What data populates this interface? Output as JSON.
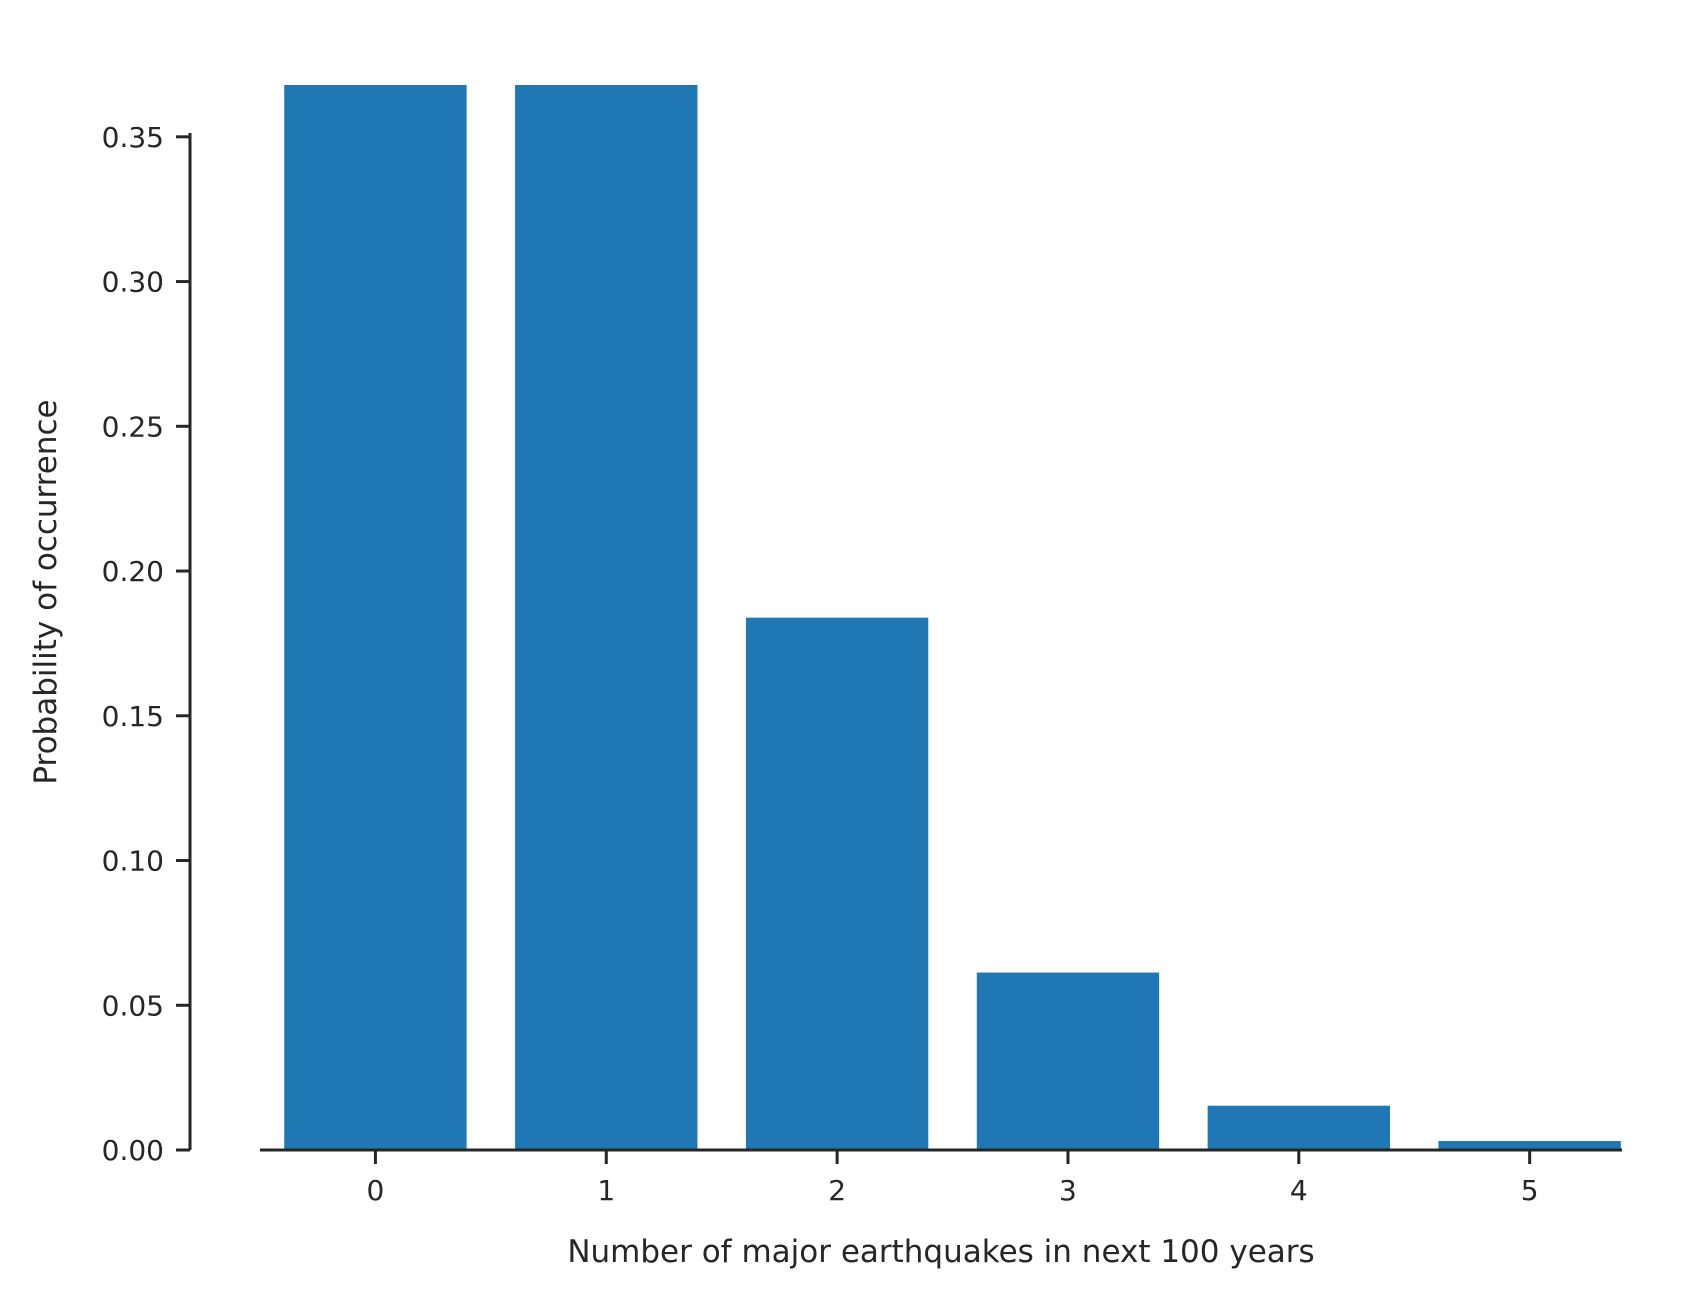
{
  "chart_data": {
    "type": "bar",
    "title": "",
    "xlabel": "Number of major earthquakes in next 100 years",
    "ylabel": "Probability of occurrence",
    "categories": [
      "0",
      "1",
      "2",
      "3",
      "4",
      "5"
    ],
    "values": [
      0.3679,
      0.3679,
      0.1839,
      0.0613,
      0.0153,
      0.0031
    ],
    "ylim": [
      0.0,
      0.3679
    ],
    "yticks": [
      0.0,
      0.05,
      0.1,
      0.15,
      0.2,
      0.25,
      0.3,
      0.35
    ],
    "ytick_labels": [
      "0.00",
      "0.05",
      "0.10",
      "0.15",
      "0.20",
      "0.25",
      "0.30",
      "0.35"
    ],
    "grid": false,
    "legend": "none",
    "colors": {
      "bar": "#1f77b4",
      "axis": "#262626",
      "text": "#262626",
      "background": "#ffffff"
    }
  }
}
